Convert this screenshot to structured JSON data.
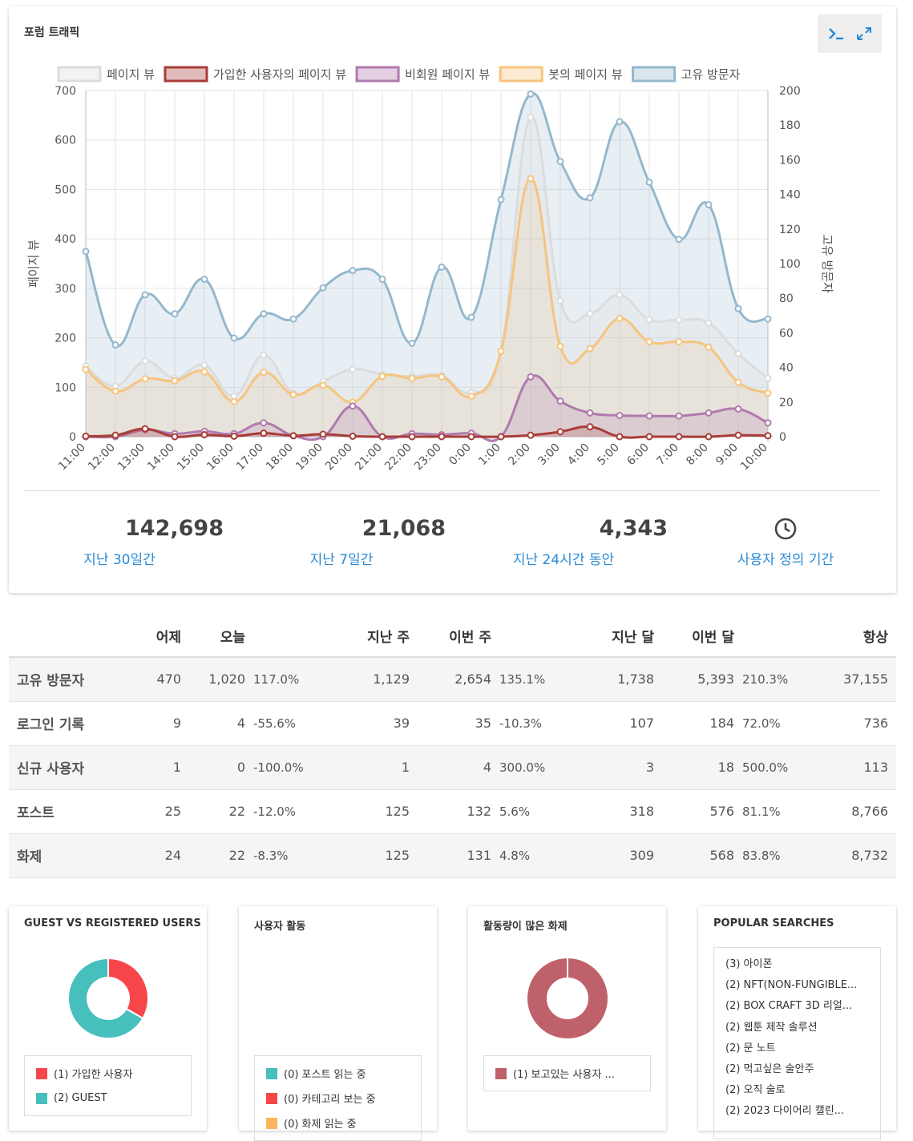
{
  "traffic": {
    "title": "포럼 트래픽",
    "stats": [
      {
        "value": "142,698",
        "label": "지난 30일간"
      },
      {
        "value": "21,068",
        "label": "지난 7일간"
      },
      {
        "value": "4,343",
        "label": "지난 24시간 동안"
      },
      {
        "value": "",
        "label": "사용자 정의 기간",
        "icon": "clock-icon"
      }
    ]
  },
  "chart_data": {
    "type": "line",
    "categories": [
      "11:00",
      "12:00",
      "13:00",
      "14:00",
      "15:00",
      "16:00",
      "17:00",
      "18:00",
      "19:00",
      "20:00",
      "21:00",
      "22:00",
      "23:00",
      "0:00",
      "1:00",
      "2:00",
      "3:00",
      "4:00",
      "5:00",
      "6:00",
      "7:00",
      "8:00",
      "9:00",
      "10:00"
    ],
    "y_left": {
      "label": "페이지 뷰",
      "range": [
        0,
        700
      ],
      "ticks": [
        0,
        100,
        200,
        300,
        400,
        500,
        600,
        700
      ]
    },
    "y_right": {
      "label": "고유 방문자",
      "range": [
        0,
        200
      ],
      "ticks": [
        0,
        20,
        40,
        60,
        80,
        100,
        120,
        140,
        160,
        180,
        200
      ]
    },
    "grid": true,
    "legend_position": "top",
    "series": [
      {
        "name": "페이지 뷰",
        "axis": "left",
        "color": "#dcdcdc",
        "fill": "rgba(220,220,220,0.25)",
        "values": [
          143,
          102,
          153,
          118,
          145,
          82,
          165,
          88,
          112,
          136,
          126,
          122,
          124,
          89,
          173,
          646,
          275,
          249,
          287,
          237,
          236,
          230,
          168,
          118
        ]
      },
      {
        "name": "가입한 사용자의 페이지 뷰",
        "axis": "left",
        "color": "#a83d38",
        "fill": "rgba(168,61,56,0.2)",
        "values": [
          1,
          3,
          16,
          0,
          4,
          1,
          7,
          2,
          5,
          1,
          0,
          0,
          0,
          0,
          0,
          3,
          10,
          20,
          0,
          0,
          0,
          0,
          3,
          2
        ]
      },
      {
        "name": "비회원 페이지 뷰",
        "axis": "left",
        "color": "#b07aae",
        "fill": "rgba(176,122,174,0.2)",
        "values": [
          0,
          0,
          14,
          6,
          11,
          6,
          28,
          2,
          0,
          62,
          0,
          6,
          4,
          7,
          0,
          121,
          72,
          48,
          43,
          42,
          42,
          48,
          56,
          28
        ]
      },
      {
        "name": "봇의 페이지 뷰",
        "axis": "left",
        "color": "#f6c47e",
        "fill": "rgba(246,196,126,0.18)",
        "values": [
          136,
          92,
          117,
          113,
          131,
          71,
          130,
          85,
          104,
          70,
          122,
          118,
          121,
          82,
          173,
          522,
          183,
          178,
          239,
          192,
          192,
          181,
          110,
          88
        ]
      },
      {
        "name": "고유 방문자",
        "axis": "right",
        "color": "#94b8cd",
        "fill": "rgba(148,184,205,0.22)",
        "values": [
          107,
          53,
          82,
          71,
          91,
          57,
          71,
          68,
          86,
          96,
          91,
          54,
          98,
          69,
          137,
          198,
          159,
          138,
          182,
          147,
          114,
          134,
          74,
          68
        ]
      }
    ]
  },
  "table": {
    "headers": [
      "",
      "어제",
      "오늘",
      "",
      "지난 주",
      "이번 주",
      "",
      "지난 달",
      "이번 달",
      "",
      "항상"
    ],
    "rows": [
      {
        "label": "고유 방문자",
        "link": false,
        "cells": [
          "470",
          "1,020",
          "117.0%",
          "1,129",
          "2,654",
          "135.1%",
          "1,738",
          "5,393",
          "210.3%",
          "37,155"
        ],
        "signs": [
          "pos",
          "pos",
          "pos"
        ]
      },
      {
        "label": "로그인 기록",
        "link": true,
        "cells": [
          "9",
          "4",
          "-55.6%",
          "39",
          "35",
          "-10.3%",
          "107",
          "184",
          "72.0%",
          "736"
        ],
        "signs": [
          "neg",
          "neg",
          "pos"
        ]
      },
      {
        "label": "신규 사용자",
        "link": true,
        "cells": [
          "1",
          "0",
          "-100.0%",
          "1",
          "4",
          "300.0%",
          "3",
          "18",
          "500.0%",
          "113"
        ],
        "signs": [
          "neg",
          "pos",
          "pos"
        ]
      },
      {
        "label": "포스트",
        "link": false,
        "cells": [
          "25",
          "22",
          "-12.0%",
          "125",
          "132",
          "5.6%",
          "318",
          "576",
          "81.1%",
          "8,766"
        ],
        "signs": [
          "neg",
          "pos",
          "pos"
        ]
      },
      {
        "label": "화제",
        "link": true,
        "cells": [
          "24",
          "22",
          "-8.3%",
          "125",
          "131",
          "4.8%",
          "309",
          "568",
          "83.8%",
          "8,732"
        ],
        "signs": [
          "neg",
          "pos",
          "pos"
        ]
      }
    ]
  },
  "guest_vs_registered": {
    "title": "GUEST VS REGISTERED USERS",
    "chart_data": {
      "type": "pie",
      "labels": [
        "가입한 사용자",
        "GUEST"
      ],
      "values": [
        1,
        2
      ],
      "colors": [
        "#f7464a",
        "#46bfbd"
      ]
    },
    "legend": [
      {
        "label": "(1) 가입한 사용자",
        "color": "#f7464a"
      },
      {
        "label": "(2) GUEST",
        "color": "#46bfbd"
      }
    ]
  },
  "user_activity": {
    "title": "사용자 활동",
    "legend": [
      {
        "label": "(0) 포스트 읽는 중",
        "color": "#46bfbd"
      },
      {
        "label": "(0) 카테고리 보는 중",
        "color": "#f7464a"
      },
      {
        "label": "(0) 화제 읽는 중",
        "color": "#fdb45c"
      }
    ]
  },
  "active_topics": {
    "title": "활동량이 많은 화제",
    "chart_data": {
      "type": "pie",
      "labels": [
        "보고있는 사용자 ..."
      ],
      "values": [
        1
      ],
      "colors": [
        "#bf616a"
      ]
    },
    "legend": [
      {
        "label": "(1) 보고있는 사용자 ...",
        "color": "#bf616a"
      }
    ]
  },
  "popular_searches": {
    "title": "POPULAR SEARCHES",
    "items": [
      "(3) 아이폰",
      "(2) NFT(NON-FUNGIBLE...",
      "(2) BOX CRAFT 3D 리얼...",
      "(2) 웹툰 제작 솔루션",
      "(2) 문 노트",
      "(2) 먹고싶은 술안주",
      "(2) 오직 술로",
      "(2) 2023 다이어리 캘린..."
    ]
  }
}
